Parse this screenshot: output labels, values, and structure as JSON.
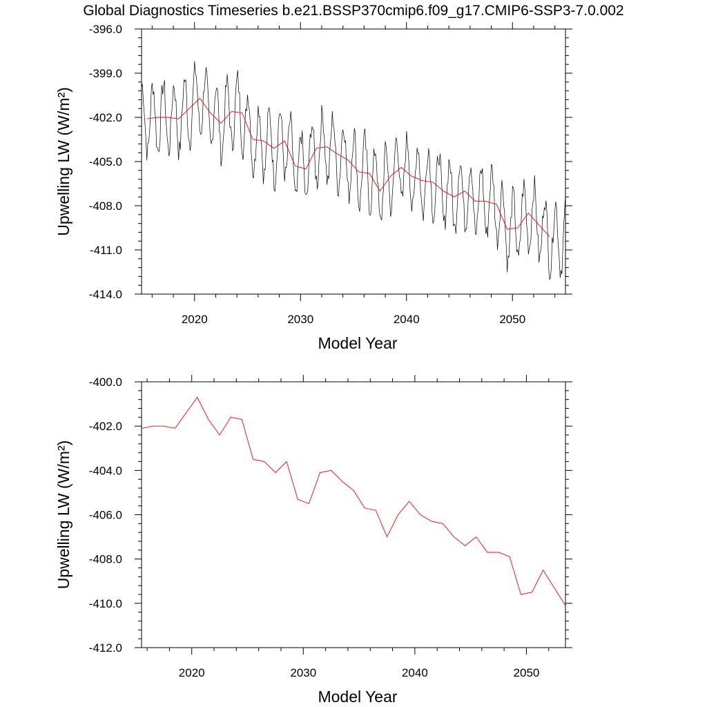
{
  "title": "Global Diagnostics Timeseries b.e21.BSSP370cmip6.f09_g17.CMIP6-SSP3-7.0.002",
  "colors": {
    "monthly": "#000000",
    "annual": "#ff0000"
  },
  "chart_data": [
    {
      "type": "line",
      "xlabel": "Model Year",
      "ylabel": "Upwelling LW (W/m²)",
      "xlim": [
        2015,
        2055
      ],
      "ylim": [
        -414,
        -396
      ],
      "xticks": [
        2020,
        2030,
        2040,
        2050
      ],
      "xtick_labels": [
        "2020",
        "2030",
        "2040",
        "2050"
      ],
      "yticks": [
        -414,
        -411,
        -408,
        -405,
        -402,
        -399,
        -396
      ],
      "ytick_labels": [
        "-414.0",
        "-411.0",
        "-408.0",
        "-405.0",
        "-402.0",
        "-399.0",
        "-396.0"
      ],
      "grid": false,
      "legend": "none",
      "series": [
        {
          "kind": "monthly",
          "seasonal_amplitude": 2.3,
          "x_start": 2015.0,
          "x_end": 2055.0,
          "points_per_year": 12
        },
        {
          "kind": "annual",
          "x": [
            2015.5,
            2016.5,
            2017.5,
            2018.5,
            2019.5,
            2020.5,
            2021.5,
            2022.5,
            2023.5,
            2024.5,
            2025.5,
            2026.5,
            2027.5,
            2028.5,
            2029.5,
            2030.5,
            2031.5,
            2032.5,
            2033.5,
            2034.5,
            2035.5,
            2036.5,
            2037.5,
            2038.5,
            2039.5,
            2040.5,
            2041.5,
            2042.5,
            2043.5,
            2044.5,
            2045.5,
            2046.5,
            2047.5,
            2048.5,
            2049.5,
            2050.5,
            2051.5,
            2052.5,
            2053.5
          ],
          "values": [
            -402.1,
            -402.0,
            -402.0,
            -402.1,
            -401.4,
            -400.7,
            -401.7,
            -402.4,
            -401.6,
            -401.7,
            -403.5,
            -403.6,
            -404.1,
            -403.6,
            -405.3,
            -405.5,
            -404.1,
            -404.0,
            -404.5,
            -404.9,
            -405.7,
            -405.8,
            -407.0,
            -406.0,
            -405.4,
            -406.0,
            -406.3,
            -406.4,
            -407.0,
            -407.4,
            -407.0,
            -407.7,
            -407.7,
            -407.9,
            -409.6,
            -409.5,
            -408.5,
            -409.3,
            -410.1
          ]
        }
      ]
    },
    {
      "type": "line",
      "xlabel": "Model Year",
      "ylabel": "Upwelling LW (W/m²)",
      "xlim": [
        2015.5,
        2053.5
      ],
      "ylim": [
        -412,
        -400
      ],
      "xticks": [
        2020,
        2030,
        2040,
        2050
      ],
      "xtick_labels": [
        "2020",
        "2030",
        "2040",
        "2050"
      ],
      "yticks": [
        -412,
        -410,
        -408,
        -406,
        -404,
        -402,
        -400
      ],
      "ytick_labels": [
        "-412.0",
        "-410.0",
        "-408.0",
        "-406.0",
        "-404.0",
        "-402.0",
        "-400.0"
      ],
      "grid": false,
      "legend": "none",
      "series": [
        {
          "kind": "annual",
          "x": [
            2015.5,
            2016.5,
            2017.5,
            2018.5,
            2019.5,
            2020.5,
            2021.5,
            2022.5,
            2023.5,
            2024.5,
            2025.5,
            2026.5,
            2027.5,
            2028.5,
            2029.5,
            2030.5,
            2031.5,
            2032.5,
            2033.5,
            2034.5,
            2035.5,
            2036.5,
            2037.5,
            2038.5,
            2039.5,
            2040.5,
            2041.5,
            2042.5,
            2043.5,
            2044.5,
            2045.5,
            2046.5,
            2047.5,
            2048.5,
            2049.5,
            2050.5,
            2051.5,
            2052.5,
            2053.5
          ],
          "values": [
            -402.1,
            -402.0,
            -402.0,
            -402.1,
            -401.4,
            -400.7,
            -401.7,
            -402.4,
            -401.6,
            -401.7,
            -403.5,
            -403.6,
            -404.1,
            -403.6,
            -405.3,
            -405.5,
            -404.1,
            -404.0,
            -404.5,
            -404.9,
            -405.7,
            -405.8,
            -407.0,
            -406.0,
            -405.4,
            -406.0,
            -406.3,
            -406.4,
            -407.0,
            -407.4,
            -407.0,
            -407.7,
            -407.7,
            -407.9,
            -409.6,
            -409.5,
            -408.5,
            -409.3,
            -410.1
          ]
        }
      ]
    }
  ]
}
